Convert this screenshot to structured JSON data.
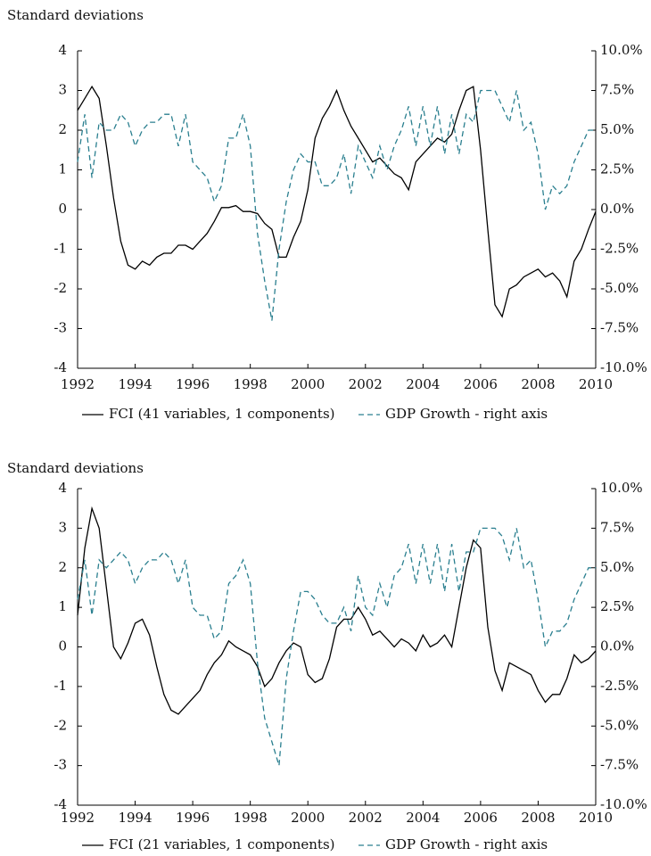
{
  "chart_data": [
    {
      "type": "line",
      "y_label": "Standard deviations",
      "x": [
        1992,
        1992.25,
        1992.5,
        1992.75,
        1993,
        1993.25,
        1993.5,
        1993.75,
        1994,
        1994.25,
        1994.5,
        1994.75,
        1995,
        1995.25,
        1995.5,
        1995.75,
        1996,
        1996.25,
        1996.5,
        1996.75,
        1997,
        1997.25,
        1997.5,
        1997.75,
        1998,
        1998.25,
        1998.5,
        1998.75,
        1999,
        1999.25,
        1999.5,
        1999.75,
        2000,
        2000.25,
        2000.5,
        2000.75,
        2001,
        2001.25,
        2001.5,
        2001.75,
        2002,
        2002.25,
        2002.5,
        2002.75,
        2003,
        2003.25,
        2003.5,
        2003.75,
        2004,
        2004.25,
        2004.5,
        2004.75,
        2005,
        2005.25,
        2005.5,
        2005.75,
        2006,
        2006.25,
        2006.5,
        2006.75,
        2007,
        2007.25,
        2007.5,
        2007.75,
        2008,
        2008.25,
        2008.5,
        2008.75,
        2009,
        2009.25,
        2009.5,
        2009.75,
        2010
      ],
      "xlim": [
        1992,
        2010
      ],
      "xticks": [
        1992,
        1994,
        1996,
        1998,
        2000,
        2002,
        2004,
        2006,
        2008,
        2010
      ],
      "ylim": [
        -4,
        4
      ],
      "yticks": [
        -4,
        -3,
        -2,
        -1,
        0,
        1,
        2,
        3,
        4
      ],
      "y2lim": [
        -10,
        10
      ],
      "y2ticks": [
        {
          "value": -10,
          "label": "-10.0%"
        },
        {
          "value": -7.5,
          "label": "-7.5%"
        },
        {
          "value": -5,
          "label": "-5.0%"
        },
        {
          "value": -2.5,
          "label": "-2.5%"
        },
        {
          "value": 0,
          "label": "0.0%"
        },
        {
          "value": 2.5,
          "label": "2.5%"
        },
        {
          "value": 5,
          "label": "5.0%"
        },
        {
          "value": 7.5,
          "label": "7.5%"
        },
        {
          "value": 10,
          "label": "10.0%"
        }
      ],
      "series": [
        {
          "name": "FCI (41 variables, 1 components)",
          "color": "#000000",
          "line_style": "solid",
          "values": [
            2.5,
            2.8,
            3.1,
            2.8,
            1.6,
            0.3,
            -0.8,
            -1.4,
            -1.5,
            -1.3,
            -1.4,
            -1.2,
            -1.1,
            -1.1,
            -0.9,
            -0.9,
            -1.0,
            -0.8,
            -0.6,
            -0.3,
            0.05,
            0.05,
            0.1,
            -0.05,
            -0.05,
            -0.1,
            -0.35,
            -0.5,
            -1.2,
            -1.2,
            -0.7,
            -0.3,
            0.5,
            1.8,
            2.3,
            2.6,
            3.0,
            2.5,
            2.1,
            1.8,
            1.5,
            1.2,
            1.3,
            1.1,
            0.9,
            0.8,
            0.5,
            1.2,
            1.4,
            1.6,
            1.8,
            1.7,
            1.9,
            2.5,
            3.0,
            3.1,
            1.5,
            -0.5,
            -2.4,
            -2.7,
            -2.0,
            -1.9,
            -1.7,
            -1.6,
            -1.5,
            -1.7,
            -1.6,
            -1.8,
            -2.2,
            -1.3,
            -1.0,
            -0.5,
            -0.05
          ]
        },
        {
          "name": "GDP Growth - right axis",
          "color": "#2a7f8f",
          "line_style": "dashed",
          "axis": "y2",
          "values": [
            3.0,
            6.0,
            2.0,
            5.5,
            5.0,
            5.0,
            6.0,
            5.5,
            4.0,
            5.0,
            5.5,
            5.5,
            6.0,
            6.0,
            4.0,
            6.0,
            3.0,
            2.5,
            2.0,
            0.5,
            1.5,
            4.5,
            4.5,
            6.0,
            4.0,
            -1.5,
            -4.5,
            -7.0,
            -2.5,
            0.5,
            2.5,
            3.5,
            3.0,
            3.0,
            1.5,
            1.5,
            2.0,
            3.5,
            1.0,
            4.0,
            3.0,
            2.0,
            4.0,
            2.5,
            4.0,
            5.0,
            6.5,
            4.0,
            6.5,
            4.0,
            6.5,
            3.5,
            6.0,
            3.5,
            6.0,
            5.5,
            7.5,
            7.5,
            7.5,
            6.5,
            5.5,
            7.5,
            5.0,
            5.5,
            3.5,
            0.0,
            1.5,
            1.0,
            1.5,
            3.0,
            4.0,
            5.0,
            5.0
          ]
        }
      ]
    },
    {
      "type": "line",
      "y_label": "Standard deviations",
      "x": [
        1992,
        1992.25,
        1992.5,
        1992.75,
        1993,
        1993.25,
        1993.5,
        1993.75,
        1994,
        1994.25,
        1994.5,
        1994.75,
        1995,
        1995.25,
        1995.5,
        1995.75,
        1996,
        1996.25,
        1996.5,
        1996.75,
        1997,
        1997.25,
        1997.5,
        1997.75,
        1998,
        1998.25,
        1998.5,
        1998.75,
        1999,
        1999.25,
        1999.5,
        1999.75,
        2000,
        2000.25,
        2000.5,
        2000.75,
        2001,
        2001.25,
        2001.5,
        2001.75,
        2002,
        2002.25,
        2002.5,
        2002.75,
        2003,
        2003.25,
        2003.5,
        2003.75,
        2004,
        2004.25,
        2004.5,
        2004.75,
        2005,
        2005.25,
        2005.5,
        2005.75,
        2006,
        2006.25,
        2006.5,
        2006.75,
        2007,
        2007.25,
        2007.5,
        2007.75,
        2008,
        2008.25,
        2008.5,
        2008.75,
        2009,
        2009.25,
        2009.5,
        2009.75,
        2010
      ],
      "xlim": [
        1992,
        2010
      ],
      "xticks": [
        1992,
        1994,
        1996,
        1998,
        2000,
        2002,
        2004,
        2006,
        2008,
        2010
      ],
      "ylim": [
        -4,
        4
      ],
      "yticks": [
        -4,
        -3,
        -2,
        -1,
        0,
        1,
        2,
        3,
        4
      ],
      "y2lim": [
        -10,
        10
      ],
      "y2ticks": [
        {
          "value": -10,
          "label": "-10.0%"
        },
        {
          "value": -7.5,
          "label": "-7.5%"
        },
        {
          "value": -5,
          "label": "-5.0%"
        },
        {
          "value": -2.5,
          "label": "-2.5%"
        },
        {
          "value": 0,
          "label": "0.0%"
        },
        {
          "value": 2.5,
          "label": "2.5%"
        },
        {
          "value": 5,
          "label": "5.0%"
        },
        {
          "value": 7.5,
          "label": "7.5%"
        },
        {
          "value": 10,
          "label": "10.0%"
        }
      ],
      "series": [
        {
          "name": "FCI (21 variables, 1 components)",
          "color": "#000000",
          "line_style": "solid",
          "values": [
            0.8,
            2.5,
            3.5,
            3.0,
            1.5,
            0.0,
            -0.3,
            0.1,
            0.6,
            0.7,
            0.3,
            -0.5,
            -1.2,
            -1.6,
            -1.7,
            -1.5,
            -1.3,
            -1.1,
            -0.7,
            -0.4,
            -0.2,
            0.15,
            0.0,
            -0.1,
            -0.2,
            -0.5,
            -1.0,
            -0.8,
            -0.4,
            -0.1,
            0.1,
            0.0,
            -0.7,
            -0.9,
            -0.8,
            -0.3,
            0.5,
            0.7,
            0.7,
            1.0,
            0.7,
            0.3,
            0.4,
            0.2,
            0.0,
            0.2,
            0.1,
            -0.1,
            0.3,
            0.0,
            0.1,
            0.3,
            0.0,
            1.0,
            2.0,
            2.7,
            2.5,
            0.5,
            -0.6,
            -1.1,
            -0.4,
            -0.5,
            -0.6,
            -0.7,
            -1.1,
            -1.4,
            -1.2,
            -1.2,
            -0.8,
            -0.2,
            -0.4,
            -0.3,
            -0.1
          ]
        },
        {
          "name": "GDP Growth - right axis",
          "color": "#2a7f8f",
          "line_style": "dashed",
          "axis": "y2",
          "values": [
            3.0,
            5.5,
            2.0,
            5.5,
            5.0,
            5.5,
            6.0,
            5.5,
            4.0,
            5.0,
            5.5,
            5.5,
            6.0,
            5.5,
            4.0,
            5.5,
            2.5,
            2.0,
            2.0,
            0.5,
            1.0,
            4.0,
            4.5,
            5.5,
            4.0,
            -1.0,
            -4.5,
            -6.0,
            -7.5,
            -2.0,
            1.0,
            3.5,
            3.5,
            3.0,
            2.0,
            1.5,
            1.5,
            2.5,
            1.0,
            4.5,
            2.5,
            2.0,
            4.0,
            2.5,
            4.5,
            5.0,
            6.5,
            4.0,
            6.5,
            4.0,
            6.5,
            3.5,
            6.5,
            3.5,
            6.0,
            6.0,
            7.5,
            7.5,
            7.5,
            7.0,
            5.5,
            7.5,
            5.0,
            5.5,
            3.0,
            0.0,
            1.0,
            1.0,
            1.5,
            3.0,
            4.0,
            5.0,
            5.0
          ]
        }
      ]
    }
  ]
}
